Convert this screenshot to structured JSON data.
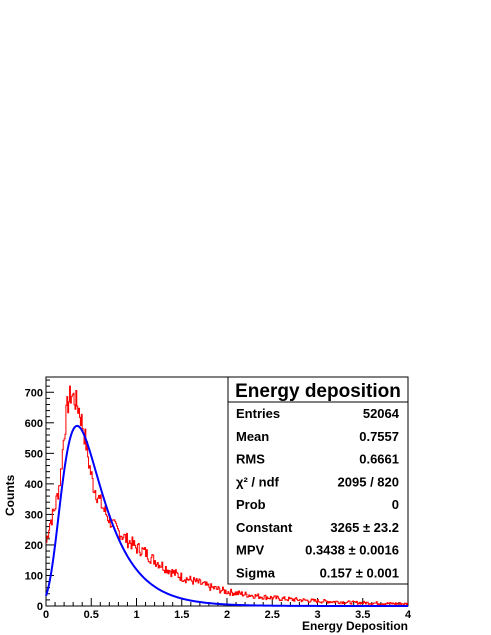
{
  "chart_data": {
    "type": "histogram",
    "xlabel": "Energy Deposition",
    "ylabel": "Counts",
    "xlim": [
      0,
      4
    ],
    "ylim": [
      0,
      750
    ],
    "x_ticks": [
      {
        "value": 0,
        "label": "0"
      },
      {
        "value": 0.5,
        "label": "0.5"
      },
      {
        "value": 1,
        "label": "1"
      },
      {
        "value": 1.5,
        "label": "1.5"
      },
      {
        "value": 2,
        "label": "2"
      },
      {
        "value": 2.5,
        "label": "2.5"
      },
      {
        "value": 3,
        "label": "3"
      },
      {
        "value": 3.5,
        "label": "3.5"
      },
      {
        "value": 4,
        "label": "4"
      }
    ],
    "y_ticks": [
      {
        "value": 0,
        "label": "0"
      },
      {
        "value": 100,
        "label": "100"
      },
      {
        "value": 200,
        "label": "200"
      },
      {
        "value": 300,
        "label": "300"
      },
      {
        "value": 400,
        "label": "400"
      },
      {
        "value": 500,
        "label": "500"
      },
      {
        "value": 600,
        "label": "600"
      },
      {
        "value": 700,
        "label": "700"
      }
    ],
    "histogram": {
      "color": "#ff0000",
      "points": [
        [
          0.0,
          200
        ],
        [
          0.04,
          270
        ],
        [
          0.08,
          300
        ],
        [
          0.12,
          350
        ],
        [
          0.16,
          420
        ],
        [
          0.2,
          560
        ],
        [
          0.24,
          660
        ],
        [
          0.28,
          695
        ],
        [
          0.32,
          675
        ],
        [
          0.36,
          650
        ],
        [
          0.4,
          600
        ],
        [
          0.44,
          540
        ],
        [
          0.48,
          460
        ],
        [
          0.52,
          400
        ],
        [
          0.56,
          370
        ],
        [
          0.6,
          340
        ],
        [
          0.65,
          310
        ],
        [
          0.7,
          285
        ],
        [
          0.75,
          260
        ],
        [
          0.8,
          245
        ],
        [
          0.85,
          230
        ],
        [
          0.9,
          215
        ],
        [
          0.95,
          205
        ],
        [
          1.0,
          190
        ],
        [
          1.05,
          185
        ],
        [
          1.1,
          175
        ],
        [
          1.15,
          160
        ],
        [
          1.2,
          150
        ],
        [
          1.3,
          130
        ],
        [
          1.4,
          110
        ],
        [
          1.5,
          95
        ],
        [
          1.6,
          85
        ],
        [
          1.7,
          75
        ],
        [
          1.8,
          63
        ],
        [
          1.9,
          55
        ],
        [
          2.0,
          47
        ],
        [
          2.2,
          38
        ],
        [
          2.4,
          30
        ],
        [
          2.6,
          24
        ],
        [
          2.8,
          20
        ],
        [
          3.0,
          16
        ],
        [
          3.2,
          14
        ],
        [
          3.4,
          11
        ],
        [
          3.6,
          10
        ],
        [
          3.8,
          8
        ],
        [
          3.98,
          7
        ]
      ]
    },
    "fit": {
      "type": "landau",
      "color": "#0000ff",
      "constant": 3265,
      "mpv": 0.3438,
      "sigma": 0.157
    },
    "stats": {
      "title": "Energy deposition",
      "rows": [
        {
          "label": "Entries",
          "value": "52064"
        },
        {
          "label": "Mean",
          "value": "0.7557"
        },
        {
          "label": "RMS",
          "value": "0.6661"
        },
        {
          "label": "χ² / ndf",
          "value": "2095 / 820"
        },
        {
          "label": "Prob",
          "value": "0"
        },
        {
          "label": "Constant",
          "value": "3265 ± 23.2"
        },
        {
          "label": "MPV",
          "value": "0.3438 ± 0.0016"
        },
        {
          "label": "Sigma",
          "value": "0.157 ± 0.001"
        }
      ]
    }
  }
}
